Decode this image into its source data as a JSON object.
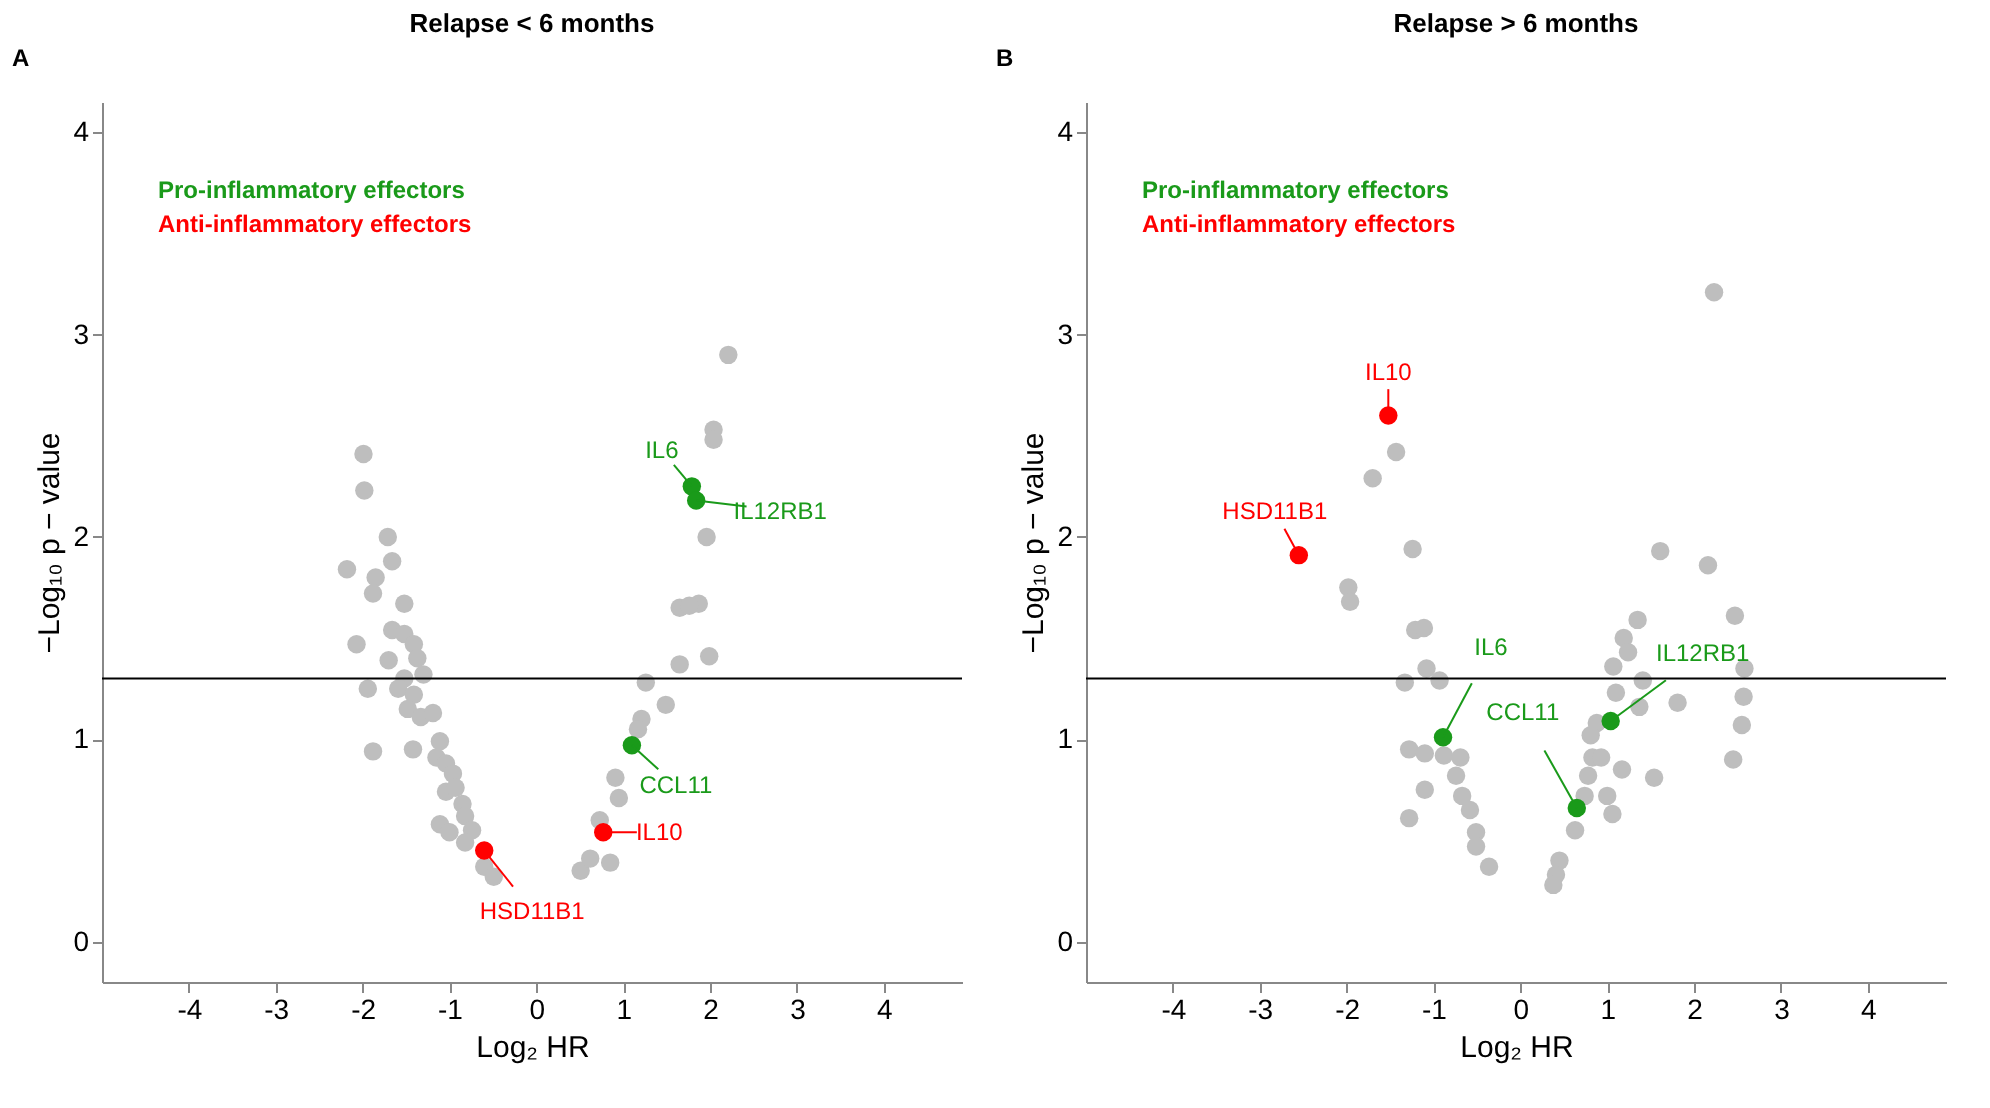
{
  "chart_data": [
    {
      "type": "scatter",
      "title": "Relapse < 6 months",
      "xlabel": "Log₂ HR",
      "ylabel": "−Log₁₀ p − value",
      "xlim": [
        -5,
        4.9
      ],
      "ylim": [
        -0.2,
        4.15
      ],
      "xticks": [
        -4,
        -3,
        -2,
        -1,
        0,
        1,
        2,
        3,
        4
      ],
      "yticks": [
        0,
        1,
        2,
        3,
        4
      ],
      "marker": "circle",
      "legend": "top left",
      "ref_lines": [
        {
          "axis": "y",
          "value": 1.3,
          "color": "#000000"
        }
      ],
      "annotations": [
        "A",
        {
          "text": "IL6",
          "x": 1.79,
          "y": 2.25
        },
        {
          "text": "IL12RB1",
          "x": 1.84,
          "y": 2.18
        },
        {
          "text": "CCL11",
          "x": 1.1,
          "y": 0.97
        },
        {
          "text": "IL10",
          "x": 0.77,
          "y": 0.54
        },
        {
          "text": "HSD11B1",
          "x": -0.6,
          "y": 0.45
        }
      ],
      "series": [
        {
          "color": "#bebebe",
          "x": [
            -1.99,
            -1.98,
            -1.71,
            -2.18,
            -1.66,
            -1.85,
            -1.88,
            -1.52,
            -1.66,
            -1.52,
            -1.41,
            -2.07,
            -1.7,
            -1.37,
            -1.3,
            -1.52,
            -1.94,
            -1.59,
            -1.41,
            -1.48,
            -1.33,
            -1.19,
            -1.11,
            -1.88,
            -1.42,
            -1.15,
            -1.04,
            -0.96,
            -1.04,
            -0.93,
            -0.85,
            -0.82,
            -1.11,
            -1.0,
            -0.74,
            -0.82,
            -0.6,
            -0.49,
            0.51,
            0.62,
            0.85,
            0.91,
            0.95,
            0.73,
            2.21,
            2.04,
            2.04,
            1.96,
            1.65,
            1.87,
            1.76,
            1.65,
            1.99,
            1.26,
            1.49,
            1.21,
            1.17
          ],
          "values": [
            2.41,
            2.23,
            2.0,
            1.84,
            1.88,
            1.8,
            1.72,
            1.67,
            1.54,
            1.52,
            1.47,
            1.47,
            1.39,
            1.4,
            1.32,
            1.3,
            1.25,
            1.25,
            1.22,
            1.15,
            1.11,
            1.13,
            0.99,
            0.94,
            0.95,
            0.91,
            0.88,
            0.83,
            0.74,
            0.76,
            0.68,
            0.62,
            0.58,
            0.54,
            0.55,
            0.49,
            0.37,
            0.32,
            0.35,
            0.41,
            0.39,
            0.81,
            0.71,
            0.6,
            2.9,
            2.53,
            2.48,
            2.0,
            1.65,
            1.67,
            1.66,
            1.37,
            1.41,
            1.28,
            1.17,
            1.1,
            1.05
          ]
        },
        {
          "name": "Pro-inflammatory effectors",
          "color": "#1a9a1a",
          "x": [
            1.79,
            1.84,
            1.1
          ],
          "values": [
            2.25,
            2.18,
            0.97
          ]
        },
        {
          "name": "Anti-inflammatory effectors",
          "color": "#ff0000",
          "x": [
            0.77,
            -0.6
          ],
          "values": [
            0.54,
            0.45
          ]
        }
      ]
    },
    {
      "type": "scatter",
      "title": "Relapse > 6 months",
      "xlabel": "Log₂ HR",
      "ylabel": "−Log₁₀ p − value",
      "xlim": [
        -5,
        4.9
      ],
      "ylim": [
        -0.2,
        4.15
      ],
      "xticks": [
        -4,
        -3,
        -2,
        -1,
        0,
        1,
        2,
        3,
        4
      ],
      "yticks": [
        0,
        1,
        2,
        3,
        4
      ],
      "marker": "circle",
      "legend": "top left",
      "ref_lines": [
        {
          "axis": "y",
          "value": 1.3,
          "color": "#000000"
        }
      ],
      "annotations": [
        "B",
        {
          "text": "IL10",
          "x": -1.52,
          "y": 2.6
        },
        {
          "text": "HSD11B1",
          "x": -2.55,
          "y": 1.91
        },
        {
          "text": "IL6",
          "x": -0.89,
          "y": 1.01
        },
        {
          "text": "CCL11",
          "x": 0.65,
          "y": 0.66
        },
        {
          "text": "IL12RB1",
          "x": 1.04,
          "y": 1.09
        }
      ],
      "series": [
        {
          "color": "#bebebe",
          "x": [
            -1.43,
            -1.7,
            -1.24,
            -1.98,
            -1.96,
            -1.21,
            -1.11,
            -1.08,
            -1.33,
            -0.93,
            -1.28,
            -1.1,
            -0.88,
            -0.69,
            -0.74,
            -1.1,
            -0.67,
            -1.28,
            -0.58,
            -0.51,
            -0.51,
            -0.36,
            2.23,
            1.61,
            2.16,
            2.47,
            1.35,
            1.19,
            1.24,
            1.07,
            1.41,
            2.58,
            1.1,
            1.37,
            1.81,
            2.57,
            0.88,
            0.81,
            2.55,
            0.83,
            0.93,
            1.17,
            1.54,
            2.45,
            0.78,
            1.0,
            0.74,
            1.06,
            0.63,
            0.45,
            0.41,
            0.38
          ],
          "values": [
            2.42,
            2.29,
            1.94,
            1.75,
            1.68,
            1.54,
            1.55,
            1.35,
            1.28,
            1.29,
            0.95,
            0.93,
            0.92,
            0.91,
            0.82,
            0.75,
            0.72,
            0.61,
            0.65,
            0.54,
            0.47,
            0.37,
            3.21,
            1.93,
            1.86,
            1.61,
            1.59,
            1.5,
            1.43,
            1.36,
            1.29,
            1.35,
            1.23,
            1.16,
            1.18,
            1.21,
            1.08,
            1.02,
            1.07,
            0.91,
            0.91,
            0.85,
            0.81,
            0.9,
            0.82,
            0.72,
            0.72,
            0.63,
            0.55,
            0.4,
            0.33,
            0.28
          ]
        },
        {
          "name": "Pro-inflammatory effectors",
          "color": "#1a9a1a",
          "x": [
            -0.89,
            0.65,
            1.04
          ],
          "values": [
            1.01,
            0.66,
            1.09
          ]
        },
        {
          "name": "Anti-inflammatory effectors",
          "color": "#ff0000",
          "x": [
            -1.52,
            -2.55
          ],
          "values": [
            2.6,
            1.91
          ]
        }
      ]
    }
  ]
}
